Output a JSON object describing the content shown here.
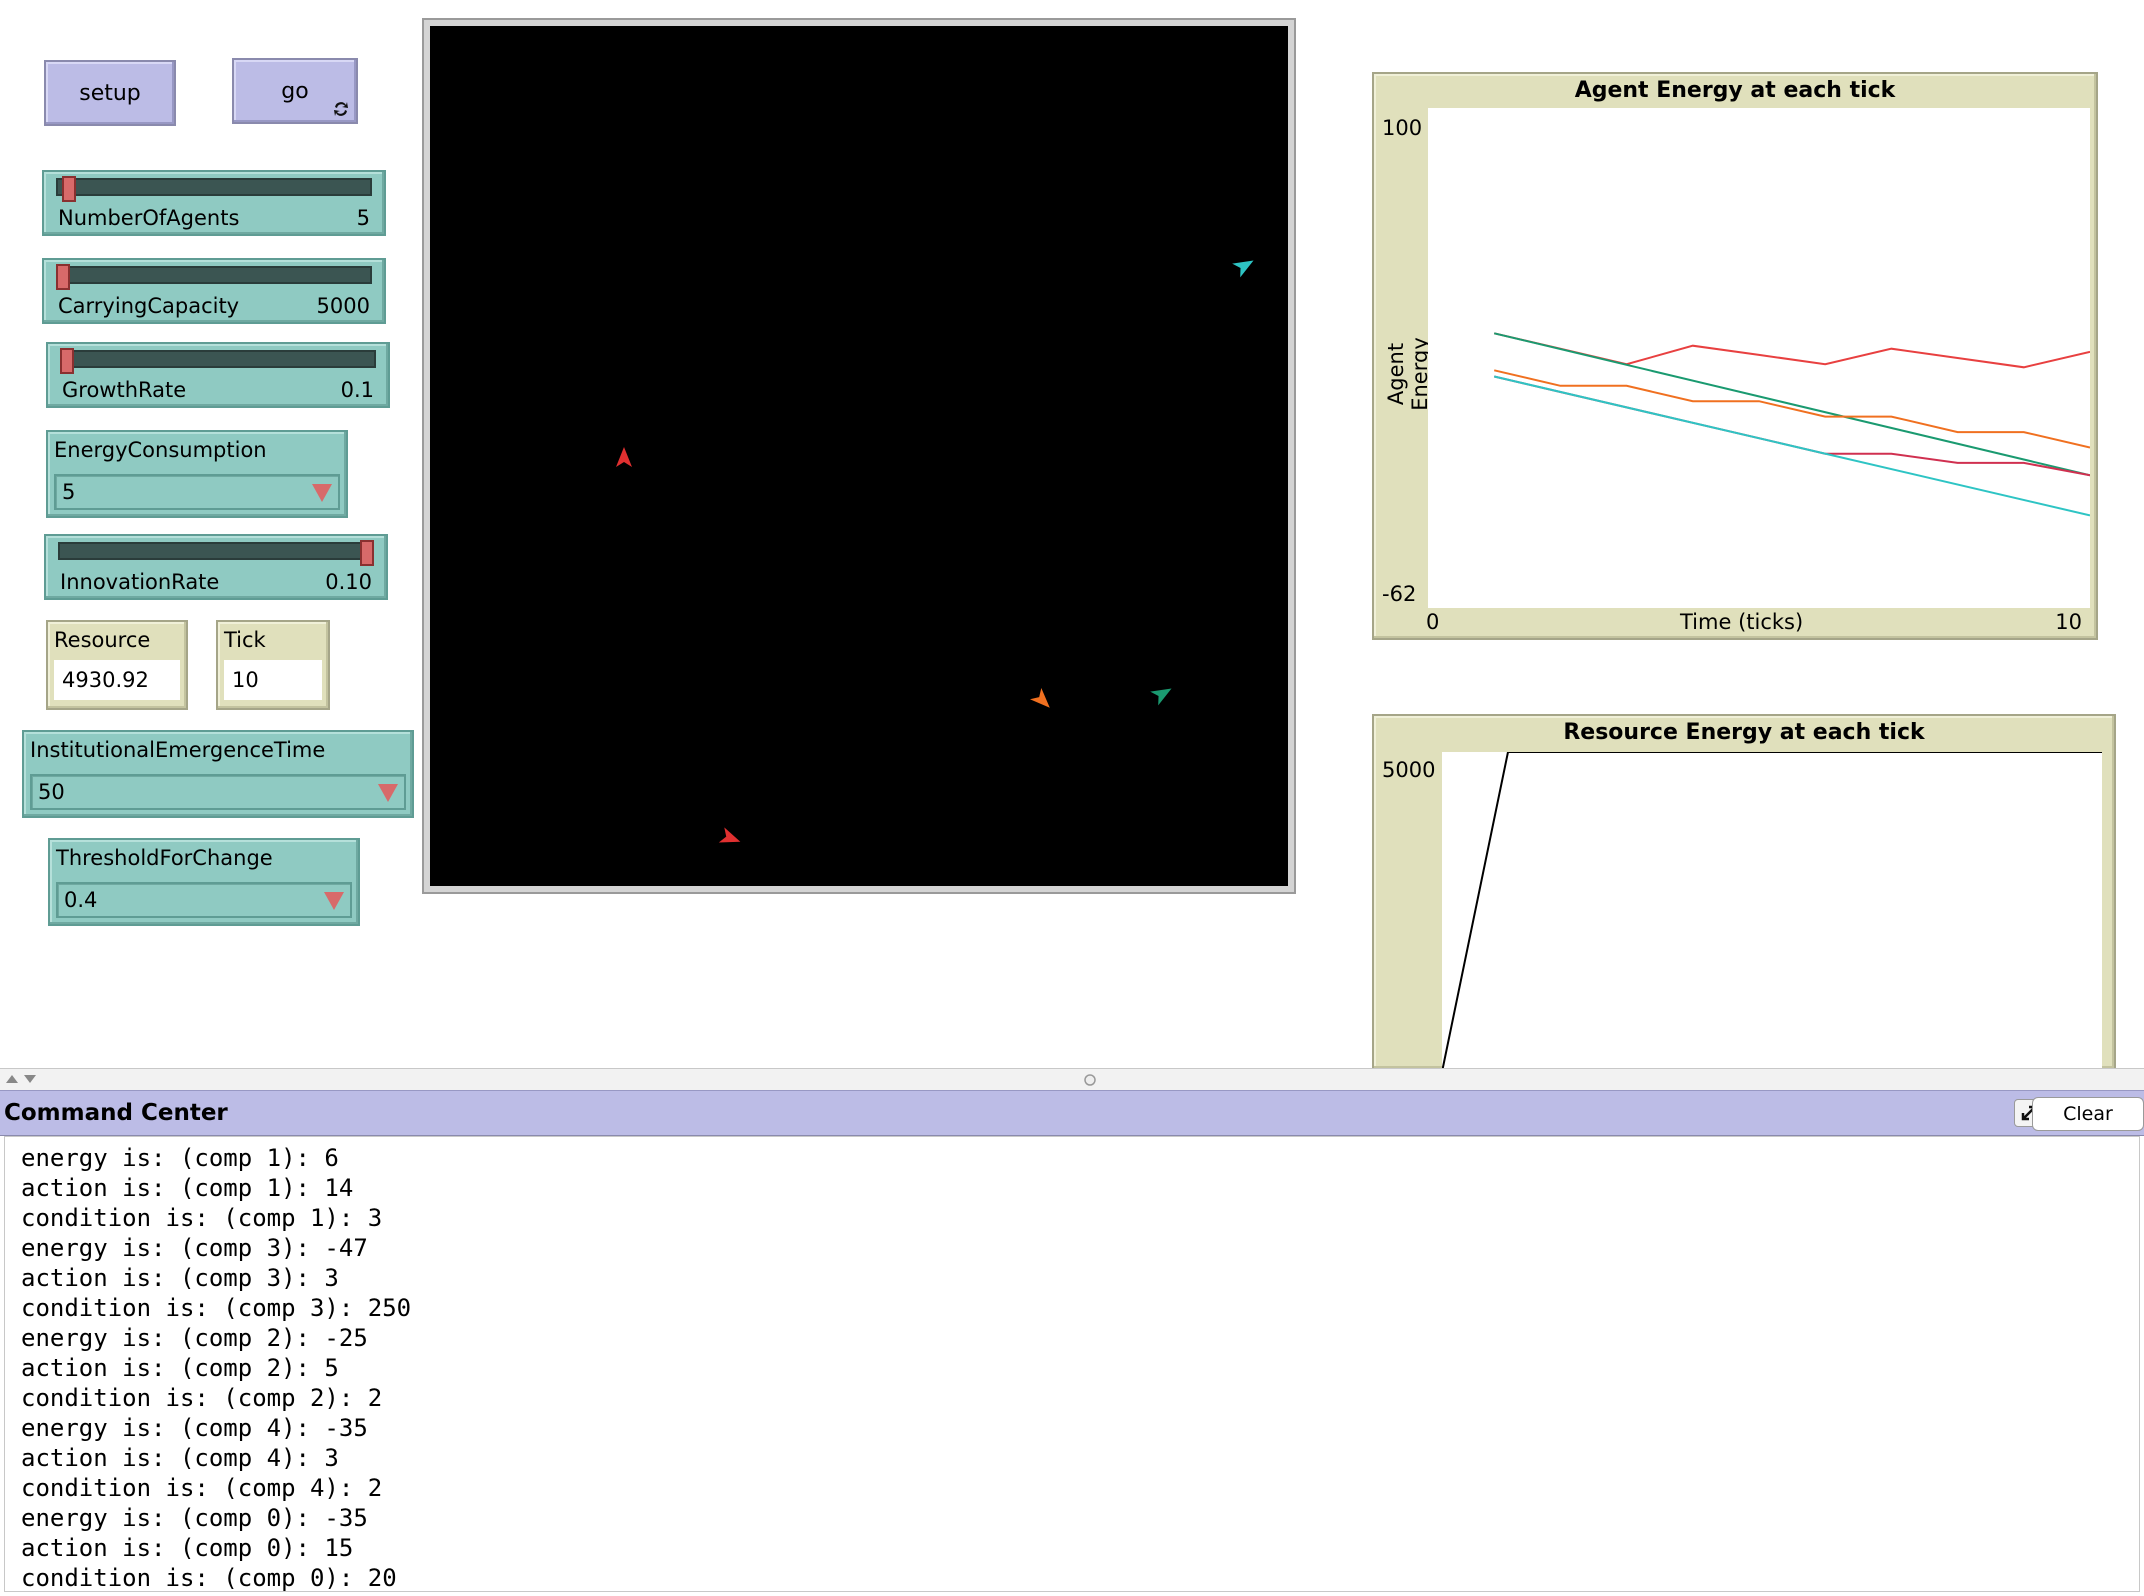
{
  "buttons": {
    "setup_label": "setup",
    "go_label": "go",
    "go_icon": "forever-icon"
  },
  "sliders": [
    {
      "label": "NumberOfAgents",
      "value": "5",
      "position": 0.05
    },
    {
      "label": "CarryingCapacity",
      "value": "5000",
      "position": 0.0
    },
    {
      "label": "GrowthRate",
      "value": "0.1",
      "position": 0.0
    },
    {
      "label": "InnovationRate",
      "value": "0.10",
      "position": 1.0
    }
  ],
  "choosers": {
    "energy_consumption": {
      "label": "EnergyConsumption",
      "value": "5"
    },
    "institutional_emergence": {
      "label": "InstitutionalEmergenceTime",
      "value": "50"
    },
    "threshold": {
      "label": "ThresholdForChange",
      "value": "0.4"
    }
  },
  "monitors": {
    "resource": {
      "label": "Resource",
      "value": "4930.92"
    },
    "tick": {
      "label": "Tick",
      "value": "10"
    }
  },
  "world": {
    "background": "#000000",
    "agents": [
      {
        "color": "#2ec4c4",
        "heading": 60
      },
      {
        "color": "#e03030",
        "heading": 0
      },
      {
        "color": "#f07020",
        "heading": 135
      },
      {
        "color": "#1a9a70",
        "heading": 60
      },
      {
        "color": "#e03030",
        "heading": 110
      }
    ]
  },
  "plot_agent": {
    "title": "Agent Energy at each tick",
    "ylabel": "Agent Energy",
    "xlabel": "Time (ticks)",
    "y_max": "100",
    "y_min": "-62",
    "x_min": "0",
    "x_max": "10"
  },
  "plot_resource": {
    "title": "Resource Energy at each tick",
    "y_max": "5000"
  },
  "chart_data": [
    {
      "type": "line",
      "title": "Agent Energy at each tick",
      "xlabel": "Time (ticks)",
      "ylabel": "Agent Energy",
      "xlim": [
        0,
        10
      ],
      "ylim": [
        -62,
        100
      ],
      "series": [
        {
          "color": "#e84040",
          "x": [
            1,
            2,
            3,
            4,
            5,
            6,
            7,
            8,
            9,
            10
          ],
          "y": [
            27,
            22,
            17,
            23,
            20,
            17,
            22,
            19,
            16,
            21
          ]
        },
        {
          "color": "#1a9a70",
          "x": [
            1,
            10
          ],
          "y": [
            27,
            -19
          ]
        },
        {
          "color": "#f07020",
          "x": [
            1,
            2,
            3,
            4,
            5,
            6,
            7,
            8,
            9,
            10
          ],
          "y": [
            15,
            10,
            10,
            5,
            5,
            0,
            0,
            -5,
            -5,
            -10
          ]
        },
        {
          "color": "#d03050",
          "x": [
            1,
            2,
            3,
            4,
            5,
            6,
            7,
            8,
            9,
            10
          ],
          "y": [
            13,
            8,
            3,
            -2,
            -7,
            -12,
            -12,
            -15,
            -15,
            -19
          ]
        },
        {
          "color": "#2ec4c4",
          "x": [
            1,
            10
          ],
          "y": [
            13,
            -32
          ]
        }
      ]
    },
    {
      "type": "line",
      "title": "Resource Energy at each tick",
      "ylim": [
        0,
        5000
      ],
      "series": [
        {
          "color": "#000000",
          "x": [
            0,
            1,
            2,
            10
          ],
          "y": [
            0,
            5000,
            5000,
            5000
          ]
        }
      ]
    }
  ],
  "command_center": {
    "title": "Command Center",
    "clear_label": "Clear",
    "expand_icon": "expand-icon",
    "lines": [
      "energy is: (comp 1): 6",
      "action is: (comp 1): 14",
      "condition is: (comp 1): 3",
      "energy is: (comp 3): -47",
      "action is: (comp 3): 3",
      "condition is: (comp 3): 250",
      "energy is: (comp 2): -25",
      "action is: (comp 2): 5",
      "condition is: (comp 2): 2",
      "energy is: (comp 4): -35",
      "action is: (comp 4): 3",
      "condition is: (comp 4): 2",
      "energy is: (comp 0): -35",
      "action is: (comp 0): 15",
      "condition is: (comp 0): 20"
    ]
  }
}
